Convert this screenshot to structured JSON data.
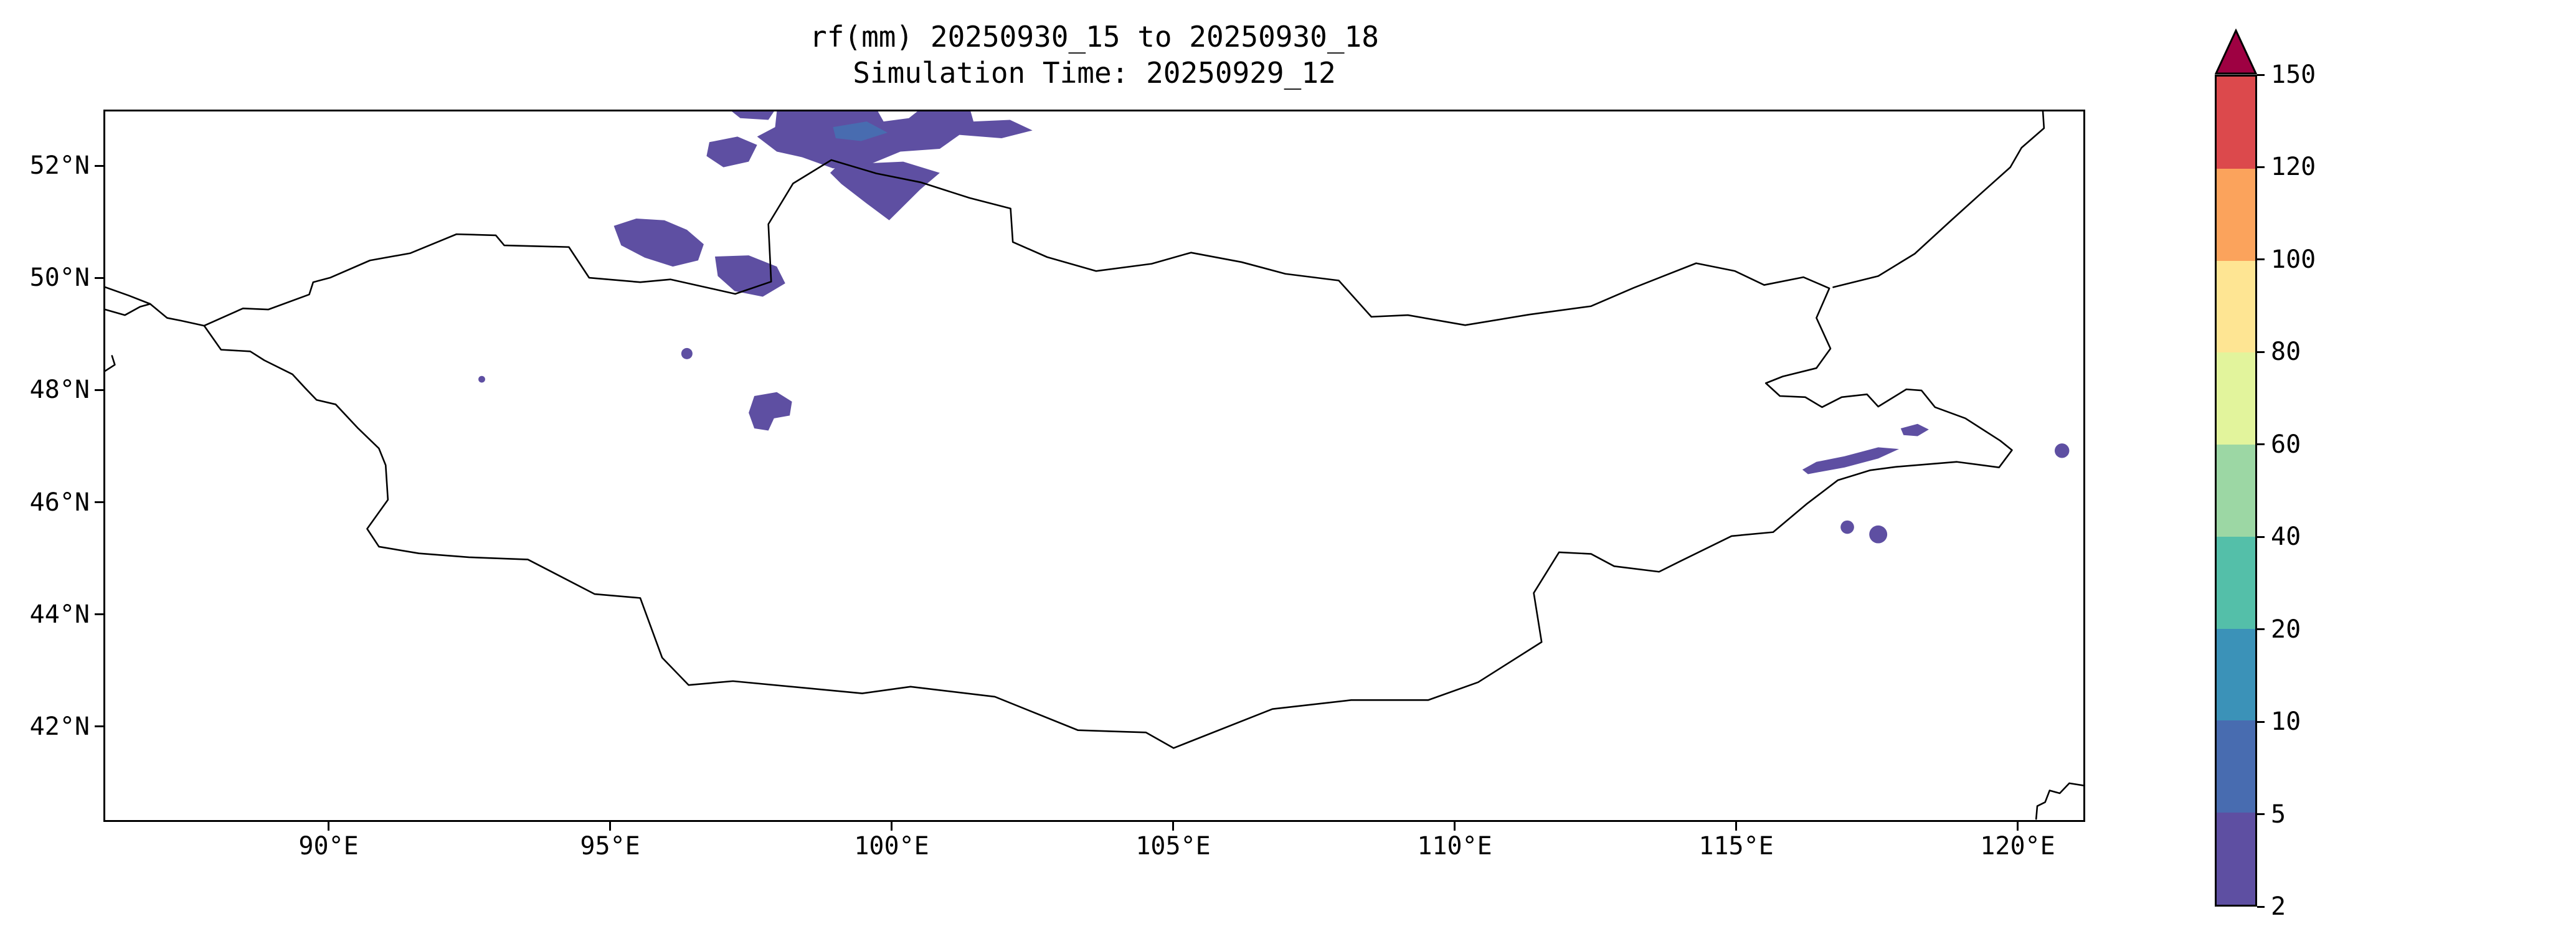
{
  "chart_data": {
    "type": "heatmap",
    "title": "rf(mm) 20250930_15 to 20250930_18",
    "subtitle": "Simulation Time: 20250929_12",
    "projection": "plate-carree",
    "grid": false,
    "extent": {
      "lon": [
        86.0,
        121.2
      ],
      "lat": [
        40.3,
        53.0
      ]
    },
    "x_axis": {
      "ticks": [
        90,
        95,
        100,
        105,
        110,
        115,
        120
      ],
      "labels": [
        "90°E",
        "95°E",
        "100°E",
        "105°E",
        "110°E",
        "115°E",
        "120°E"
      ]
    },
    "y_axis": {
      "ticks": [
        52,
        50,
        48,
        46,
        44,
        42
      ],
      "labels": [
        "52°N",
        "50°N",
        "48°N",
        "46°N",
        "44°N",
        "42°N"
      ]
    },
    "colorbar": {
      "orientation": "vertical",
      "levels": [
        2,
        5,
        10,
        20,
        40,
        60,
        80,
        100,
        120,
        150
      ],
      "labels": [
        "2",
        "5",
        "10",
        "20",
        "40",
        "60",
        "80",
        "100",
        "120",
        "150"
      ],
      "colors": [
        "#5e4fa2",
        "#486cb0",
        "#3b92b8",
        "#54bfa9",
        "#9cd7a4",
        "#e2f49c",
        "#fee593",
        "#fba35c",
        "#dc494c"
      ],
      "over_color": "#9e0142"
    },
    "borders": [
      {
        "name": "mongolia-outline",
        "points": [
          [
            87.76,
            49.16
          ],
          [
            88.45,
            49.47
          ],
          [
            88.9,
            49.45
          ],
          [
            89.63,
            49.72
          ],
          [
            89.7,
            49.94
          ],
          [
            90.0,
            50.02
          ],
          [
            90.71,
            50.33
          ],
          [
            91.43,
            50.46
          ],
          [
            92.25,
            50.8
          ],
          [
            92.95,
            50.78
          ],
          [
            93.1,
            50.6
          ],
          [
            94.25,
            50.57
          ],
          [
            94.61,
            50.02
          ],
          [
            95.52,
            49.94
          ],
          [
            96.06,
            49.99
          ],
          [
            97.21,
            49.73
          ],
          [
            97.85,
            49.95
          ],
          [
            97.8,
            50.98
          ],
          [
            98.24,
            51.71
          ],
          [
            98.92,
            52.13
          ],
          [
            99.72,
            51.89
          ],
          [
            100.51,
            51.73
          ],
          [
            101.38,
            51.45
          ],
          [
            102.11,
            51.26
          ],
          [
            102.15,
            50.66
          ],
          [
            102.76,
            50.39
          ],
          [
            103.63,
            50.14
          ],
          [
            104.62,
            50.27
          ],
          [
            105.32,
            50.47
          ],
          [
            106.22,
            50.3
          ],
          [
            107.0,
            50.09
          ],
          [
            107.95,
            49.97
          ],
          [
            108.53,
            49.32
          ],
          [
            109.18,
            49.35
          ],
          [
            110.2,
            49.17
          ],
          [
            111.34,
            49.36
          ],
          [
            112.44,
            49.51
          ],
          [
            113.2,
            49.84
          ],
          [
            114.31,
            50.28
          ],
          [
            115.0,
            50.14
          ],
          [
            115.52,
            49.89
          ],
          [
            116.22,
            50.03
          ],
          [
            116.68,
            49.83
          ],
          [
            116.45,
            49.3
          ],
          [
            116.7,
            48.75
          ],
          [
            116.45,
            48.4
          ],
          [
            115.85,
            48.25
          ],
          [
            115.55,
            48.13
          ],
          [
            115.8,
            47.9
          ],
          [
            116.25,
            47.88
          ],
          [
            116.55,
            47.7
          ],
          [
            116.9,
            47.88
          ],
          [
            117.35,
            47.93
          ],
          [
            117.55,
            47.71
          ],
          [
            118.05,
            48.02
          ],
          [
            118.32,
            48.0
          ],
          [
            118.56,
            47.7
          ],
          [
            119.1,
            47.5
          ],
          [
            119.72,
            47.1
          ],
          [
            119.93,
            46.93
          ],
          [
            119.7,
            46.62
          ],
          [
            118.95,
            46.72
          ],
          [
            117.86,
            46.63
          ],
          [
            117.41,
            46.57
          ],
          [
            116.83,
            46.39
          ],
          [
            116.27,
            45.96
          ],
          [
            115.68,
            45.46
          ],
          [
            114.94,
            45.39
          ],
          [
            114.03,
            44.94
          ],
          [
            113.65,
            44.75
          ],
          [
            112.85,
            44.85
          ],
          [
            112.44,
            45.07
          ],
          [
            111.87,
            45.1
          ],
          [
            111.42,
            44.37
          ],
          [
            111.56,
            43.49
          ],
          [
            110.43,
            42.77
          ],
          [
            109.54,
            42.45
          ],
          [
            108.17,
            42.45
          ],
          [
            106.77,
            42.29
          ],
          [
            105.01,
            41.59
          ],
          [
            104.52,
            41.87
          ],
          [
            103.31,
            41.91
          ],
          [
            101.83,
            42.51
          ],
          [
            100.33,
            42.69
          ],
          [
            99.47,
            42.57
          ],
          [
            97.17,
            42.79
          ],
          [
            96.38,
            42.72
          ],
          [
            95.91,
            43.21
          ],
          [
            95.52,
            44.28
          ],
          [
            94.71,
            44.35
          ],
          [
            93.52,
            44.97
          ],
          [
            92.47,
            45.01
          ],
          [
            91.58,
            45.08
          ],
          [
            90.87,
            45.2
          ],
          [
            90.66,
            45.52
          ],
          [
            91.03,
            46.04
          ],
          [
            90.99,
            46.66
          ],
          [
            90.87,
            46.96
          ],
          [
            90.5,
            47.32
          ],
          [
            90.1,
            47.75
          ],
          [
            89.76,
            47.83
          ],
          [
            89.56,
            48.04
          ],
          [
            89.33,
            48.29
          ],
          [
            88.83,
            48.54
          ],
          [
            88.58,
            48.7
          ],
          [
            88.06,
            48.73
          ],
          [
            87.76,
            49.16
          ]
        ]
      },
      {
        "name": "west-border-a",
        "points": [
          [
            86.0,
            49.85
          ],
          [
            86.42,
            49.7
          ],
          [
            86.8,
            49.55
          ],
          [
            87.1,
            49.3
          ],
          [
            87.35,
            49.25
          ],
          [
            87.76,
            49.16
          ]
        ]
      },
      {
        "name": "west-border-b",
        "points": [
          [
            86.0,
            49.45
          ],
          [
            86.35,
            49.35
          ],
          [
            86.62,
            49.5
          ],
          [
            86.8,
            49.55
          ]
        ]
      },
      {
        "name": "west-border-c",
        "points": [
          [
            86.0,
            48.35
          ],
          [
            86.17,
            48.46
          ],
          [
            86.12,
            48.62
          ]
        ]
      },
      {
        "name": "northeast-border",
        "points": [
          [
            116.75,
            49.85
          ],
          [
            117.55,
            50.05
          ],
          [
            118.2,
            50.45
          ],
          [
            118.85,
            51.05
          ],
          [
            119.4,
            51.55
          ],
          [
            119.9,
            52.0
          ],
          [
            120.1,
            52.35
          ],
          [
            120.5,
            52.7
          ],
          [
            120.48,
            53.0
          ]
        ]
      },
      {
        "name": "southeast-border",
        "points": [
          [
            121.2,
            40.92
          ],
          [
            120.95,
            40.96
          ],
          [
            120.78,
            40.78
          ],
          [
            120.6,
            40.83
          ],
          [
            120.52,
            40.62
          ],
          [
            120.38,
            40.55
          ],
          [
            120.36,
            40.32
          ]
        ]
      }
    ],
    "precipitation": {
      "unit": "mm",
      "polygons": [
        {
          "name": "north-main-cell",
          "level_index": 0,
          "points": [
            [
              97.95,
              53.0
            ],
            [
              99.75,
              53.0
            ],
            [
              99.85,
              52.82
            ],
            [
              100.3,
              52.88
            ],
            [
              100.45,
              53.0
            ],
            [
              101.4,
              53.0
            ],
            [
              101.45,
              52.82
            ],
            [
              102.1,
              52.85
            ],
            [
              102.5,
              52.66
            ],
            [
              101.95,
              52.52
            ],
            [
              101.2,
              52.58
            ],
            [
              100.85,
              52.33
            ],
            [
              100.15,
              52.28
            ],
            [
              99.55,
              52.03
            ],
            [
              98.95,
              51.98
            ],
            [
              98.4,
              52.18
            ],
            [
              97.95,
              52.28
            ],
            [
              97.6,
              52.55
            ],
            [
              97.92,
              52.72
            ]
          ]
        },
        {
          "name": "north-main-core",
          "level_index": 1,
          "points": [
            [
              98.95,
              52.72
            ],
            [
              99.55,
              52.82
            ],
            [
              99.92,
              52.62
            ],
            [
              99.45,
              52.47
            ],
            [
              99.0,
              52.52
            ]
          ]
        },
        {
          "name": "north-lower-lobe",
          "level_index": 0,
          "points": [
            [
              99.05,
              52.05
            ],
            [
              100.2,
              52.1
            ],
            [
              100.85,
              51.9
            ],
            [
              100.5,
              51.6
            ],
            [
              99.95,
              51.05
            ],
            [
              99.55,
              51.35
            ],
            [
              99.1,
              51.7
            ],
            [
              98.9,
              51.9
            ]
          ]
        },
        {
          "name": "north-west-piece",
          "level_index": 0,
          "points": [
            [
              96.75,
              52.45
            ],
            [
              97.25,
              52.55
            ],
            [
              97.6,
              52.4
            ],
            [
              97.45,
              52.1
            ],
            [
              97.0,
              52.0
            ],
            [
              96.7,
              52.2
            ]
          ]
        },
        {
          "name": "top-edge-sliver",
          "level_index": 0,
          "points": [
            [
              97.15,
              53.0
            ],
            [
              97.9,
              53.0
            ],
            [
              97.8,
              52.85
            ],
            [
              97.3,
              52.88
            ]
          ]
        },
        {
          "name": "west-cluster",
          "level_index": 0,
          "points": [
            [
              95.05,
              50.95
            ],
            [
              95.45,
              51.08
            ],
            [
              95.95,
              51.05
            ],
            [
              96.35,
              50.88
            ],
            [
              96.65,
              50.62
            ],
            [
              96.55,
              50.33
            ],
            [
              96.1,
              50.22
            ],
            [
              95.6,
              50.38
            ],
            [
              95.18,
              50.6
            ]
          ]
        },
        {
          "name": "border-cell",
          "level_index": 0,
          "points": [
            [
              96.85,
              50.4
            ],
            [
              97.45,
              50.42
            ],
            [
              97.95,
              50.22
            ],
            [
              98.1,
              49.92
            ],
            [
              97.7,
              49.68
            ],
            [
              97.2,
              49.78
            ],
            [
              96.9,
              50.05
            ]
          ]
        },
        {
          "name": "central-cell",
          "level_index": 0,
          "points": [
            [
              97.55,
              47.9
            ],
            [
              97.95,
              47.97
            ],
            [
              98.22,
              47.8
            ],
            [
              98.18,
              47.55
            ],
            [
              97.9,
              47.5
            ],
            [
              97.8,
              47.28
            ],
            [
              97.55,
              47.32
            ],
            [
              97.45,
              47.6
            ]
          ]
        },
        {
          "name": "east-streak",
          "level_index": 0,
          "points": [
            [
              116.3,
              46.5
            ],
            [
              116.95,
              46.62
            ],
            [
              117.55,
              46.78
            ],
            [
              117.92,
              46.95
            ],
            [
              117.55,
              46.98
            ],
            [
              116.95,
              46.82
            ],
            [
              116.45,
              46.72
            ],
            [
              116.2,
              46.58
            ]
          ]
        },
        {
          "name": "east-small-cell",
          "level_index": 0,
          "points": [
            [
              117.95,
              47.32
            ],
            [
              118.25,
              47.4
            ],
            [
              118.45,
              47.3
            ],
            [
              118.25,
              47.18
            ],
            [
              118.0,
              47.2
            ]
          ]
        }
      ],
      "spots": [
        {
          "name": "spot-west",
          "lon": 96.35,
          "lat": 48.66,
          "r": 0.1,
          "level_index": 0
        },
        {
          "name": "spot-tiny-west",
          "lon": 92.7,
          "lat": 48.2,
          "r": 0.06,
          "level_index": 0
        },
        {
          "name": "spot-east-1",
          "lon": 117.0,
          "lat": 45.55,
          "r": 0.12,
          "level_index": 0
        },
        {
          "name": "spot-east-2",
          "lon": 117.55,
          "lat": 45.42,
          "r": 0.16,
          "level_index": 0
        },
        {
          "name": "spot-far-east",
          "lon": 120.82,
          "lat": 46.92,
          "r": 0.13,
          "level_index": 0
        }
      ]
    }
  }
}
